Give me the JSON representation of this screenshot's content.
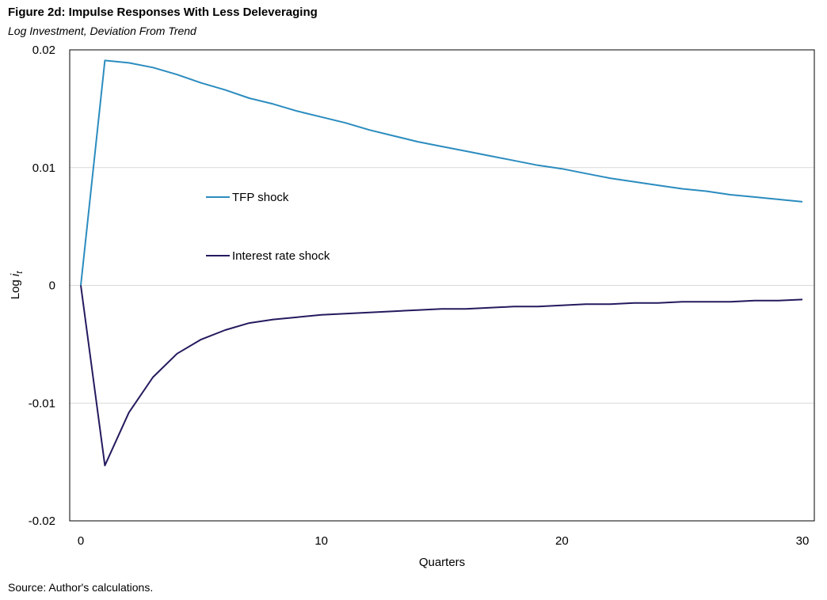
{
  "title": "Figure 2d: Impulse Responses With Less Deleveraging",
  "subtitle": "Log Investment, Deviation From Trend",
  "source": "Source: Author's calculations.",
  "chart_data": {
    "type": "line",
    "xlabel": "Quarters",
    "ylabel_prefix": "Log ",
    "ylabel_var": "i",
    "ylabel_sub": "t",
    "xlim": [
      0,
      30
    ],
    "ylim": [
      -0.02,
      0.02
    ],
    "xticks": [
      0,
      10,
      20,
      30
    ],
    "xtick_labels": [
      "0",
      "10",
      "20",
      "30"
    ],
    "yticks": [
      0.02,
      0.01,
      0,
      -0.01,
      -0.02
    ],
    "ytick_labels": [
      "0.02",
      "0.01",
      "0",
      "-0.01",
      "-0.02"
    ],
    "grid": true,
    "legend_position": "inside-left",
    "x": [
      0,
      1,
      2,
      3,
      4,
      5,
      6,
      7,
      8,
      9,
      10,
      11,
      12,
      13,
      14,
      15,
      16,
      17,
      18,
      19,
      20,
      21,
      22,
      23,
      24,
      25,
      26,
      27,
      28,
      29,
      30
    ],
    "series": [
      {
        "name": "TFP shock",
        "color": "#2b8cbf",
        "values": [
          0,
          0.0191,
          0.0189,
          0.0185,
          0.0179,
          0.0172,
          0.0166,
          0.0159,
          0.0154,
          0.0148,
          0.0143,
          0.0138,
          0.0132,
          0.0127,
          0.0122,
          0.0118,
          0.0114,
          0.011,
          0.0106,
          0.0102,
          0.0099,
          0.0095,
          0.0091,
          0.0088,
          0.0085,
          0.0082,
          0.008,
          0.0077,
          0.0075,
          0.0073,
          0.0071
        ]
      },
      {
        "name": "Interest rate shock",
        "color": "#241a5e",
        "values": [
          0,
          -0.0153,
          -0.0108,
          -0.0078,
          -0.0058,
          -0.0046,
          -0.0038,
          -0.0032,
          -0.0029,
          -0.0027,
          -0.0025,
          -0.0024,
          -0.0023,
          -0.0022,
          -0.0021,
          -0.002,
          -0.002,
          -0.0019,
          -0.0018,
          -0.0018,
          -0.0017,
          -0.0016,
          -0.0016,
          -0.0015,
          -0.0015,
          -0.0014,
          -0.0014,
          -0.0014,
          -0.0013,
          -0.0013,
          -0.0012
        ]
      }
    ]
  }
}
